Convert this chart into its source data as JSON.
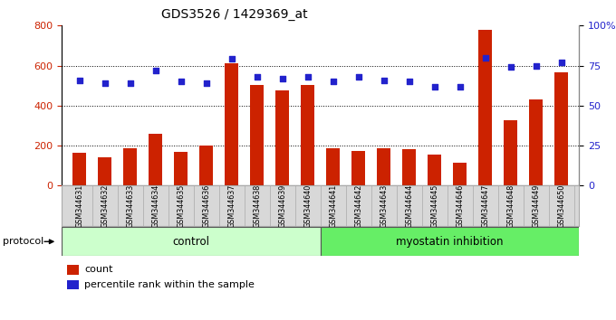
{
  "title": "GDS3526 / 1429369_at",
  "samples": [
    "GSM344631",
    "GSM344632",
    "GSM344633",
    "GSM344634",
    "GSM344635",
    "GSM344636",
    "GSM344637",
    "GSM344638",
    "GSM344639",
    "GSM344640",
    "GSM344641",
    "GSM344642",
    "GSM344643",
    "GSM344644",
    "GSM344645",
    "GSM344646",
    "GSM344647",
    "GSM344648",
    "GSM344649",
    "GSM344650"
  ],
  "counts": [
    165,
    140,
    185,
    260,
    170,
    200,
    610,
    505,
    475,
    505,
    185,
    175,
    185,
    180,
    155,
    115,
    780,
    325,
    430,
    565
  ],
  "percentile_ranks": [
    66,
    64,
    64,
    72,
    65,
    64,
    79,
    68,
    67,
    68,
    65,
    68,
    66,
    65,
    62,
    62,
    80,
    74,
    75,
    77
  ],
  "control_count": 10,
  "bar_color": "#cc2200",
  "square_color": "#2222cc",
  "control_bg": "#ccffcc",
  "treatment_bg": "#66ee66",
  "ylim_left": [
    0,
    800
  ],
  "ylim_right": [
    0,
    100
  ],
  "yticks_left": [
    0,
    200,
    400,
    600,
    800
  ],
  "yticks_right": [
    0,
    25,
    50,
    75,
    100
  ],
  "ytick_right_labels": [
    "0",
    "25",
    "50",
    "75",
    "100%"
  ],
  "grid_values": [
    200,
    400,
    600
  ],
  "control_label": "control",
  "treatment_label": "myostatin inhibition",
  "protocol_label": "protocol",
  "legend_count": "count",
  "legend_percentile": "percentile rank within the sample",
  "bg_color": "#e8e8e8"
}
